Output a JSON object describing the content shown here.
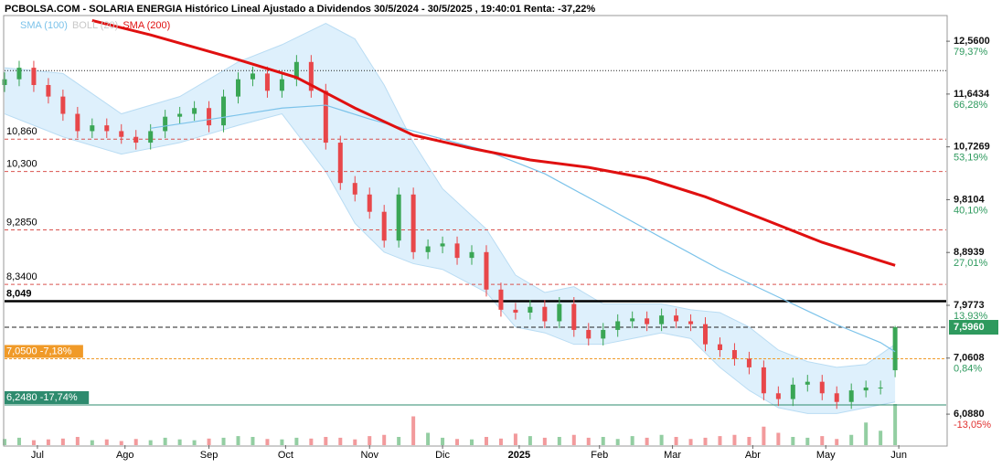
{
  "chart_data": {
    "type": "candlestick",
    "title": "PCBOLSA.COM - SOLARIA ENERGIA Histórico Lineal Ajustado a Dividendos 30/5/2024 - 30/5/2025 , 19:40:01 Renta: -37,22%",
    "legend": [
      {
        "name": "SMA (100)",
        "color": "#7cc3ea"
      },
      {
        "name": "BOLL (20)",
        "color": "#c8c8c8"
      },
      {
        "name": "SMA (200)",
        "color": "#e01010"
      }
    ],
    "xlim": [
      0,
      258
    ],
    "xticks": [
      {
        "value": 9,
        "label": "Jul"
      },
      {
        "value": 33,
        "label": "Ago"
      },
      {
        "value": 56,
        "label": "Sep"
      },
      {
        "value": 77,
        "label": "Oct"
      },
      {
        "value": 100,
        "label": "Nov"
      },
      {
        "value": 120,
        "label": "Dic"
      },
      {
        "value": 141,
        "label": "2025"
      },
      {
        "value": 163,
        "label": "Feb"
      },
      {
        "value": 183,
        "label": "Mar"
      },
      {
        "value": 205,
        "label": "Abr"
      },
      {
        "value": 225,
        "label": "May"
      },
      {
        "value": 245,
        "label": "Jun"
      }
    ],
    "ylim": [
      5.55,
      12.99
    ],
    "yticks": [
      {
        "value": 12.56,
        "label": "12,5600"
      },
      {
        "value": 11.6434,
        "label": "11,6434"
      },
      {
        "value": 10.7269,
        "label": "10,7269"
      },
      {
        "value": 9.8104,
        "label": "9,8104"
      },
      {
        "value": 8.8939,
        "label": "8,8939"
      },
      {
        "value": 7.9773,
        "label": "7,9773"
      },
      {
        "value": 7.0608,
        "label": "7,0608"
      },
      {
        "value": 6.088,
        "label": "6,0880"
      }
    ],
    "ytick_changes": [
      "79,37%",
      "66,28%",
      "53,19%",
      "40,10%",
      "27,01%",
      "13,93%",
      "0,84%",
      "-13,05%"
    ],
    "up_color": "#3aa655",
    "down_color": "#e8474a",
    "x": [
      0,
      4,
      8,
      12,
      16,
      20,
      24,
      28,
      32,
      36,
      40,
      44,
      48,
      52,
      56,
      60,
      64,
      68,
      72,
      76,
      80,
      84,
      88,
      92,
      96,
      100,
      104,
      108,
      112,
      116,
      120,
      124,
      128,
      132,
      136,
      140,
      144,
      148,
      152,
      156,
      160,
      164,
      168,
      172,
      176,
      180,
      184,
      188,
      192,
      196,
      200,
      204,
      208,
      212,
      216,
      220,
      224,
      228,
      232,
      236,
      240,
      244
    ],
    "open": [
      11.8,
      11.9,
      12.1,
      11.8,
      11.6,
      11.3,
      11.0,
      11.1,
      11.0,
      10.9,
      10.8,
      11.0,
      11.25,
      11.3,
      11.4,
      11.1,
      11.6,
      11.9,
      12.0,
      11.7,
      11.9,
      12.2,
      11.7,
      10.8,
      10.1,
      9.9,
      9.6,
      9.1,
      9.9,
      8.9,
      9.0,
      9.05,
      8.8,
      8.9,
      8.25,
      7.9,
      7.85,
      7.95,
      7.7,
      8.0,
      7.55,
      7.4,
      7.55,
      7.7,
      7.75,
      7.65,
      7.8,
      7.7,
      7.65,
      7.3,
      7.2,
      7.05,
      6.9,
      6.45,
      6.35,
      6.6,
      6.65,
      6.45,
      6.3,
      6.5,
      6.55,
      6.85
    ],
    "high": [
      12.02,
      12.22,
      12.22,
      11.92,
      11.72,
      11.42,
      11.22,
      11.22,
      11.12,
      11.02,
      11.12,
      11.37,
      11.42,
      11.52,
      11.52,
      11.72,
      12.02,
      12.12,
      12.12,
      12.02,
      12.32,
      12.32,
      11.82,
      10.92,
      10.22,
      10.02,
      9.72,
      10.02,
      10.02,
      9.12,
      9.17,
      9.17,
      9.02,
      9.02,
      8.37,
      8.02,
      8.07,
      8.07,
      8.12,
      8.12,
      7.67,
      7.67,
      7.82,
      7.87,
      7.87,
      7.92,
      7.92,
      7.82,
      7.77,
      7.42,
      7.32,
      7.17,
      7.02,
      6.57,
      6.72,
      6.77,
      6.77,
      6.57,
      6.62,
      6.67,
      6.67,
      7.62
    ],
    "low": [
      11.68,
      11.78,
      11.68,
      11.48,
      11.18,
      10.88,
      10.88,
      10.88,
      10.78,
      10.68,
      10.68,
      10.88,
      11.13,
      11.18,
      10.98,
      10.98,
      11.48,
      11.78,
      11.58,
      11.58,
      11.78,
      11.58,
      10.68,
      9.98,
      9.78,
      9.48,
      8.98,
      8.98,
      8.78,
      8.78,
      8.88,
      8.68,
      8.68,
      8.13,
      7.78,
      7.73,
      7.73,
      7.58,
      7.58,
      7.43,
      7.28,
      7.28,
      7.43,
      7.58,
      7.53,
      7.53,
      7.58,
      7.53,
      7.18,
      7.08,
      6.93,
      6.78,
      6.33,
      6.23,
      6.23,
      6.48,
      6.33,
      6.18,
      6.18,
      6.38,
      6.43,
      6.73
    ],
    "close": [
      11.9,
      12.1,
      11.8,
      11.6,
      11.3,
      11.0,
      11.1,
      11.0,
      10.9,
      10.8,
      11.0,
      11.25,
      11.3,
      11.4,
      11.1,
      11.6,
      11.9,
      12.0,
      11.7,
      11.9,
      12.2,
      11.7,
      10.8,
      10.1,
      9.9,
      9.6,
      9.1,
      9.9,
      8.9,
      9.0,
      9.05,
      8.8,
      8.9,
      8.25,
      7.9,
      7.85,
      7.95,
      7.7,
      8.0,
      7.55,
      7.4,
      7.55,
      7.7,
      7.75,
      7.65,
      7.8,
      7.7,
      7.65,
      7.3,
      7.2,
      7.05,
      6.9,
      6.45,
      6.35,
      6.6,
      6.65,
      6.45,
      6.3,
      6.5,
      6.55,
      6.55,
      7.596
    ],
    "volume": [
      15,
      18,
      12,
      14,
      16,
      20,
      12,
      14,
      10,
      15,
      12,
      18,
      14,
      12,
      16,
      18,
      22,
      20,
      15,
      14,
      18,
      16,
      20,
      18,
      14,
      22,
      25,
      20,
      70,
      30,
      18,
      15,
      14,
      20,
      16,
      28,
      22,
      18,
      20,
      25,
      18,
      20,
      15,
      22,
      18,
      25,
      20,
      15,
      18,
      22,
      25,
      20,
      45,
      30,
      20,
      18,
      22,
      15,
      25,
      55,
      35,
      100
    ],
    "bollinger": {
      "color": "#d3ebfb",
      "x": [
        0,
        16,
        32,
        48,
        64,
        76,
        88,
        96,
        104,
        112,
        120,
        132,
        140,
        148,
        156,
        164,
        172,
        180,
        188,
        196,
        204,
        212,
        220,
        228,
        236,
        244
      ],
      "upper": [
        12.1,
        12.0,
        11.3,
        11.6,
        12.2,
        12.5,
        12.87,
        12.6,
        11.8,
        10.8,
        10.0,
        9.3,
        8.5,
        8.2,
        8.3,
        8.0,
        8.0,
        8.0,
        7.9,
        7.85,
        7.6,
        7.2,
        7.0,
        6.9,
        6.95,
        7.3
      ],
      "lower": [
        11.3,
        10.9,
        10.6,
        10.8,
        11.1,
        11.3,
        10.3,
        9.4,
        8.9,
        8.7,
        8.6,
        8.2,
        7.6,
        7.5,
        7.3,
        7.3,
        7.4,
        7.5,
        7.4,
        6.9,
        6.5,
        6.2,
        6.1,
        6.1,
        6.2,
        6.3
      ]
    },
    "series": [
      {
        "name": "SMA (100)",
        "color": "#7cc3ea",
        "width": 1.2,
        "x": [
          40,
          60,
          76,
          88,
          100,
          116,
          132,
          148,
          164,
          180,
          196,
          212,
          228,
          240,
          244
        ],
        "values": [
          11.05,
          11.24,
          11.4,
          11.45,
          11.21,
          10.93,
          10.66,
          10.26,
          9.71,
          9.15,
          8.6,
          8.12,
          7.64,
          7.33,
          7.17
        ]
      },
      {
        "name": "SMA (200)",
        "color": "#e01010",
        "width": 3,
        "x": [
          24,
          40,
          64,
          80,
          96,
          112,
          128,
          144,
          160,
          176,
          192,
          208,
          224,
          240,
          244
        ],
        "values": [
          12.92,
          12.67,
          12.24,
          11.93,
          11.4,
          10.93,
          10.7,
          10.5,
          10.37,
          10.18,
          9.86,
          9.47,
          9.07,
          8.75,
          8.67
        ]
      }
    ],
    "levels": [
      {
        "value": 12.05,
        "color": "#222",
        "dash": "1 2",
        "width": 1
      },
      {
        "value": 10.86,
        "label": "10,860",
        "color": "#d9534f",
        "dash": "4 3",
        "width": 1
      },
      {
        "value": 10.3,
        "label": "10,300",
        "color": "#d9534f",
        "dash": "4 3",
        "width": 1
      },
      {
        "value": 9.285,
        "label": "9,2850",
        "color": "#d9534f",
        "dash": "4 3",
        "width": 1
      },
      {
        "value": 8.34,
        "label": "8,3400",
        "color": "#d9534f",
        "dash": "4 3",
        "width": 1
      },
      {
        "value": 8.049,
        "label": "8,049",
        "color": "#000",
        "dash": "none",
        "width": 2.5
      },
      {
        "value": 7.596,
        "color": "#222",
        "dash": "5 3",
        "width": 1
      },
      {
        "value": 7.05,
        "label": "7,0500 -7,18%",
        "color": "#f09a28",
        "dash": "3 2",
        "width": 1,
        "box": true
      },
      {
        "value": 6.248,
        "label": "6,2480 -17,74%",
        "color": "#2e8b6e",
        "dash": "none",
        "width": 1,
        "box": true
      }
    ],
    "last_price": {
      "value": 7.596,
      "label": "7,5960",
      "color": "#2e9a5e"
    }
  }
}
